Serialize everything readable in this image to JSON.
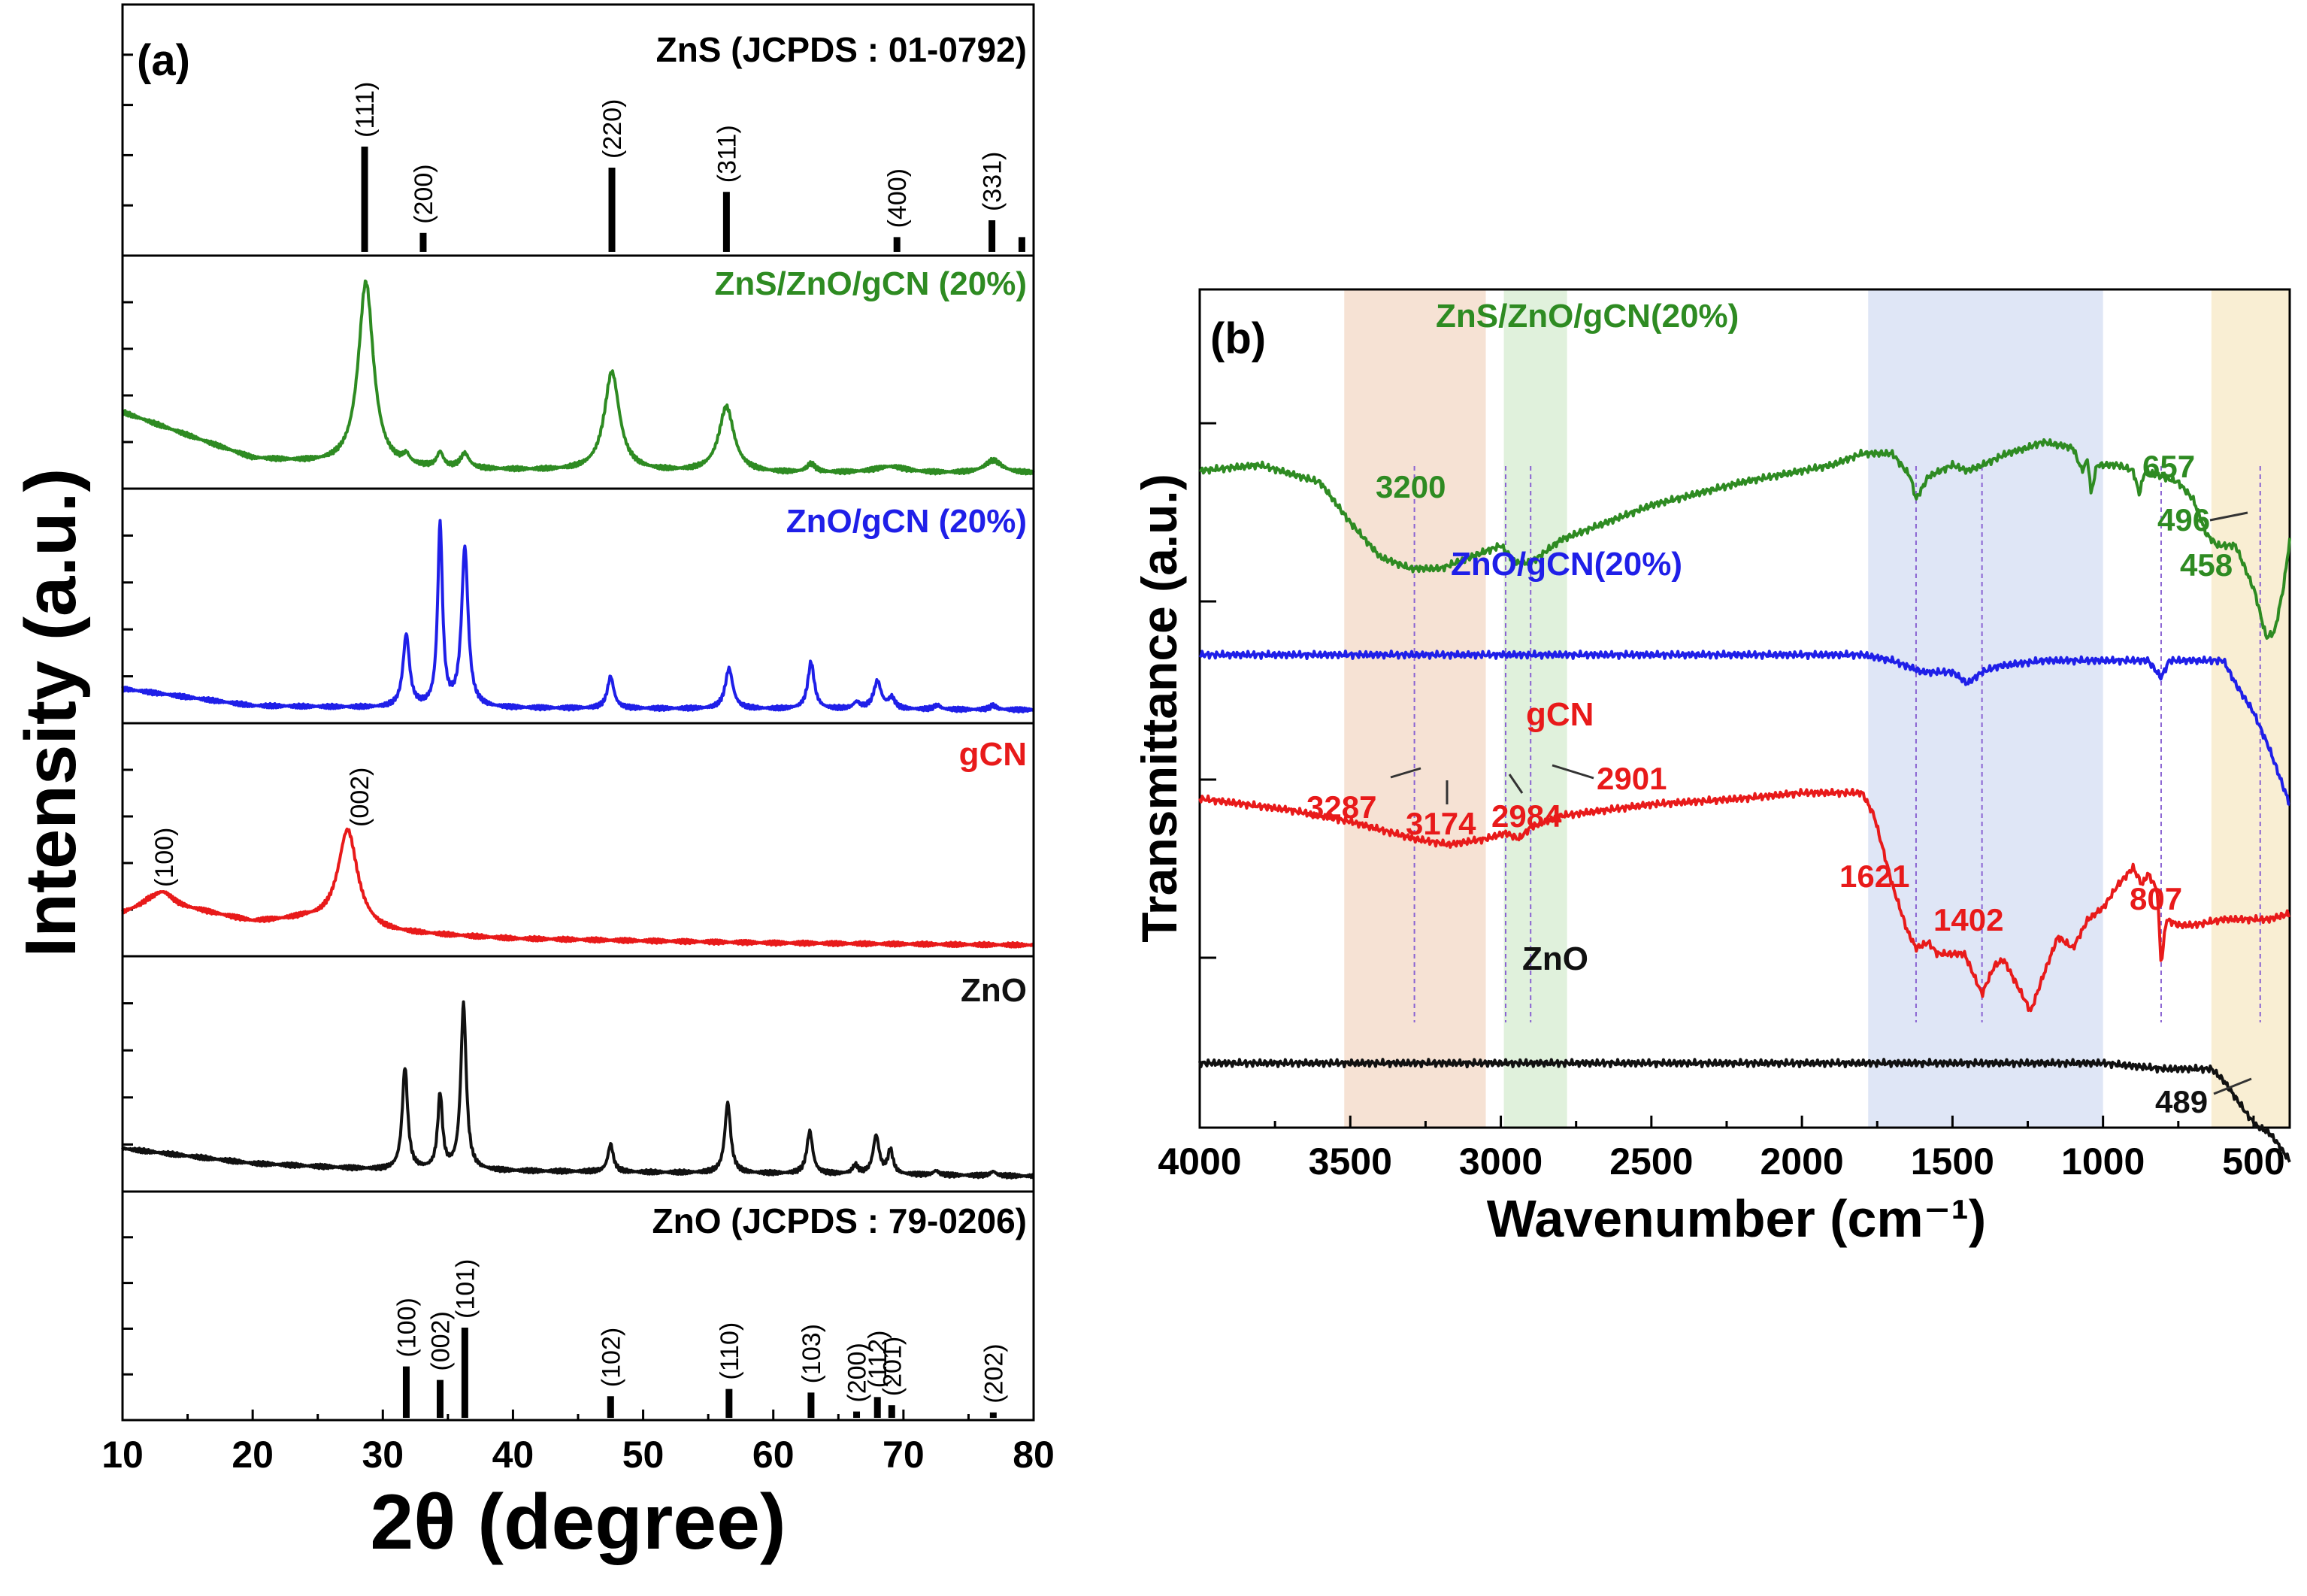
{
  "figure": {
    "panels": {
      "a": {
        "label": "(a)",
        "xlabel": "2θ (degree)",
        "ylabel": "Intensity (a.u.)",
        "xlim": [
          10,
          80
        ],
        "xticks": [
          10,
          20,
          30,
          40,
          50,
          60,
          70,
          80
        ],
        "ref_top_title": "ZnS (JCPDS : 01-0792)",
        "ref_bottom_title": "ZnO (JCPDS : 79-0206)",
        "trace_labels": {
          "zns_zno_gcn": "ZnS/ZnO/gCN (20%)",
          "zno_gcn": "ZnO/gCN (20%)",
          "gcn": "gCN",
          "zno": "ZnO"
        },
        "gcn_peak_labels": [
          "(100)",
          "(002)"
        ]
      },
      "b": {
        "label": "(b)",
        "xlabel": "Wavenumber (cm⁻¹)",
        "ylabel": "Transmittance (a.u.)",
        "xlim": [
          4000,
          380
        ],
        "xticks": [
          4000,
          3500,
          3000,
          2500,
          2000,
          1500,
          1000,
          500
        ],
        "trace_labels": {
          "zns_zno_gcn": "ZnS/ZnO/gCN(20%)",
          "zno_gcn": "ZnO/gCN(20%)",
          "gcn": "gCN",
          "zno": "ZnO"
        },
        "peak_labels": {
          "green": [
            "3200",
            "657",
            "496",
            "458"
          ],
          "red": [
            "3287",
            "3174",
            "2984",
            "2901",
            "1621",
            "1402",
            "807"
          ],
          "black": [
            "489"
          ]
        }
      }
    }
  },
  "chart_data": [
    {
      "type": "line",
      "panel": "a",
      "title": "",
      "xlabel": "2θ (degree)",
      "ylabel": "Intensity (a.u.)",
      "xlim": [
        10,
        80
      ],
      "grid": false,
      "reference_patterns": [
        {
          "name": "ZnS (JCPDS : 01-0792)",
          "peaks": [
            {
              "two_theta": 28.6,
              "intensity": 100,
              "hkl": "(111)"
            },
            {
              "two_theta": 33.1,
              "intensity": 18,
              "hkl": "(200)"
            },
            {
              "two_theta": 47.6,
              "intensity": 80,
              "hkl": "(220)"
            },
            {
              "two_theta": 56.4,
              "intensity": 57,
              "hkl": "(311)"
            },
            {
              "two_theta": 69.5,
              "intensity": 14,
              "hkl": "(400)"
            },
            {
              "two_theta": 76.8,
              "intensity": 30,
              "hkl": "(331)"
            },
            {
              "two_theta": 79.1,
              "intensity": 14,
              "hkl": ""
            }
          ]
        },
        {
          "name": "ZnO (JCPDS : 79-0206)",
          "peaks": [
            {
              "two_theta": 31.8,
              "intensity": 57,
              "hkl": "(100)"
            },
            {
              "two_theta": 34.4,
              "intensity": 42,
              "hkl": "(002)"
            },
            {
              "two_theta": 36.3,
              "intensity": 100,
              "hkl": "(101)"
            },
            {
              "two_theta": 47.5,
              "intensity": 24,
              "hkl": "(102)"
            },
            {
              "two_theta": 56.6,
              "intensity": 32,
              "hkl": "(110)"
            },
            {
              "two_theta": 62.9,
              "intensity": 28,
              "hkl": "(103)"
            },
            {
              "two_theta": 66.4,
              "intensity": 7,
              "hkl": "(200)"
            },
            {
              "two_theta": 68.0,
              "intensity": 23,
              "hkl": "(112)"
            },
            {
              "two_theta": 69.1,
              "intensity": 14,
              "hkl": "(201)"
            },
            {
              "two_theta": 76.9,
              "intensity": 6,
              "hkl": "(202)"
            }
          ]
        }
      ],
      "series": [
        {
          "name": "ZnS/ZnO/gCN (20%)",
          "color": "#2e8b22",
          "baseline": [
            [
              10,
              32
            ],
            [
              20,
              10
            ],
            [
              30,
              5
            ],
            [
              60,
              3
            ],
            [
              80,
              3
            ]
          ],
          "peaks": [
            [
              28.7,
              88,
              0.7
            ],
            [
              31.8,
              4,
              0.3
            ],
            [
              34.4,
              7,
              0.3
            ],
            [
              36.3,
              7,
              0.4
            ],
            [
              47.6,
              47,
              0.7
            ],
            [
              56.4,
              31,
              0.7
            ],
            [
              62.9,
              4,
              0.4
            ],
            [
              69,
              3,
              1.5
            ],
            [
              76.9,
              6,
              0.8
            ]
          ]
        },
        {
          "name": "ZnO/gCN (20%)",
          "color": "#1f1fe8",
          "baseline": [
            [
              10,
              12
            ],
            [
              20,
              4
            ],
            [
              30,
              3
            ],
            [
              80,
              2
            ]
          ],
          "peaks": [
            [
              31.8,
              34,
              0.3
            ],
            [
              34.4,
              86,
              0.22
            ],
            [
              36.3,
              75,
              0.3
            ],
            [
              47.5,
              15,
              0.3
            ],
            [
              56.6,
              19,
              0.35
            ],
            [
              62.9,
              22,
              0.3
            ],
            [
              66.4,
              3,
              0.3
            ],
            [
              68.0,
              13,
              0.35
            ],
            [
              69.1,
              5,
              0.3
            ],
            [
              72.6,
              2,
              0.3
            ],
            [
              76.9,
              2,
              0.3
            ]
          ]
        },
        {
          "name": "gCN",
          "color": "#e81a1a",
          "baseline": [
            [
              10,
              16
            ],
            [
              12,
              20
            ],
            [
              16,
              17
            ],
            [
              20,
              12
            ],
            [
              24,
              13
            ],
            [
              30,
              7
            ],
            [
              40,
              4
            ],
            [
              50,
              3
            ],
            [
              60,
              2
            ],
            [
              80,
              1
            ]
          ],
          "peaks": [
            [
              13.1,
              7,
              1.0
            ],
            [
              27.3,
              46,
              0.9
            ]
          ]
        },
        {
          "name": "ZnO",
          "color": "#111111",
          "baseline": [
            [
              10,
              16
            ],
            [
              20,
              9
            ],
            [
              30,
              6
            ],
            [
              80,
              3
            ]
          ],
          "peaks": [
            [
              31.7,
              48,
              0.25
            ],
            [
              34.4,
              35,
              0.22
            ],
            [
              36.2,
              78,
              0.25
            ],
            [
              47.5,
              13,
              0.25
            ],
            [
              56.5,
              33,
              0.27
            ],
            [
              62.8,
              20,
              0.27
            ],
            [
              66.3,
              4,
              0.25
            ],
            [
              67.9,
              18,
              0.28
            ],
            [
              69.0,
              11,
              0.25
            ],
            [
              72.5,
              2,
              0.25
            ],
            [
              76.9,
              2,
              0.25
            ]
          ]
        }
      ]
    },
    {
      "type": "line",
      "panel": "b",
      "title": "",
      "xlabel": "Wavenumber (cm⁻¹)",
      "ylabel": "Transmittance (a.u.)",
      "xlim": [
        4000,
        380
      ],
      "grid": false,
      "shaded_regions": [
        {
          "from": 3520,
          "to": 3050,
          "color": "#f3d8c6"
        },
        {
          "from": 2990,
          "to": 2780,
          "color": "#d5ecd0"
        },
        {
          "from": 1780,
          "to": 1000,
          "color": "#d4def3"
        },
        {
          "from": 640,
          "to": 380,
          "color": "#f7e8c4"
        }
      ],
      "guide_lines": [
        3287,
        2984,
        2901,
        1621,
        1402,
        807,
        478
      ],
      "series": [
        {
          "name": "ZnS/ZnO/gCN(20%)",
          "color": "#2e8b22",
          "points": [
            [
              4000,
              92
            ],
            [
              3800,
              93
            ],
            [
              3600,
              90
            ],
            [
              3500,
              83
            ],
            [
              3400,
              77
            ],
            [
              3300,
              75
            ],
            [
              3200,
              75
            ],
            [
              3100,
              77
            ],
            [
              3000,
              79
            ],
            [
              2950,
              76
            ],
            [
              2900,
              76
            ],
            [
              2800,
              80
            ],
            [
              2500,
              86
            ],
            [
              2200,
              90
            ],
            [
              1900,
              93
            ],
            [
              1800,
              95
            ],
            [
              1700,
              95
            ],
            [
              1640,
              91
            ],
            [
              1621,
              87
            ],
            [
              1580,
              91
            ],
            [
              1500,
              93
            ],
            [
              1450,
              92
            ],
            [
              1400,
              93
            ],
            [
              1320,
              95
            ],
            [
              1250,
              96
            ],
            [
              1200,
              97
            ],
            [
              1100,
              96
            ],
            [
              1070,
              92
            ],
            [
              1050,
              94
            ],
            [
              1040,
              88
            ],
            [
              1020,
              93
            ],
            [
              950,
              93
            ],
            [
              900,
              92
            ],
            [
              880,
              88
            ],
            [
              860,
              92
            ],
            [
              750,
              90
            ],
            [
              700,
              87
            ],
            [
              657,
              81
            ],
            [
              620,
              79
            ],
            [
              560,
              79
            ],
            [
              496,
              71
            ],
            [
              458,
              63
            ],
            [
              430,
              64
            ],
            [
              400,
              72
            ],
            [
              380,
              80
            ]
          ]
        },
        {
          "name": "ZnO/gCN(20%)",
          "color": "#1f1fe8",
          "points": [
            [
              4000,
              60
            ],
            [
              3000,
              60
            ],
            [
              2000,
              60
            ],
            [
              1800,
              60
            ],
            [
              1700,
              59
            ],
            [
              1600,
              57
            ],
            [
              1500,
              57
            ],
            [
              1450,
              55
            ],
            [
              1402,
              57
            ],
            [
              1350,
              58
            ],
            [
              1200,
              59
            ],
            [
              1000,
              59
            ],
            [
              850,
              59
            ],
            [
              807,
              56
            ],
            [
              780,
              59
            ],
            [
              600,
              59
            ],
            [
              560,
              55
            ],
            [
              500,
              50
            ],
            [
              450,
              44
            ],
            [
              380,
              34
            ]
          ]
        },
        {
          "name": "gCN",
          "color": "#e81a1a",
          "points": [
            [
              4000,
              35
            ],
            [
              3700,
              33
            ],
            [
              3500,
              31
            ],
            [
              3287,
              28
            ],
            [
              3174,
              27
            ],
            [
              3050,
              28
            ],
            [
              2984,
              29
            ],
            [
              2940,
              28
            ],
            [
              2901,
              30
            ],
            [
              2800,
              32
            ],
            [
              2500,
              34
            ],
            [
              2200,
              35
            ],
            [
              2000,
              36
            ],
            [
              1800,
              36
            ],
            [
              1760,
              32
            ],
            [
              1700,
              20
            ],
            [
              1650,
              12
            ],
            [
              1621,
              9
            ],
            [
              1580,
              10
            ],
            [
              1550,
              8
            ],
            [
              1460,
              8
            ],
            [
              1402,
              1
            ],
            [
              1360,
              6
            ],
            [
              1330,
              7
            ],
            [
              1300,
              4
            ],
            [
              1240,
              -2
            ],
            [
              1200,
              4
            ],
            [
              1150,
              11
            ],
            [
              1100,
              9
            ],
            [
              1050,
              14
            ],
            [
              1000,
              16
            ],
            [
              950,
              20
            ],
            [
              900,
              23
            ],
            [
              870,
              20
            ],
            [
              850,
              22
            ],
            [
              820,
              19
            ],
            [
              807,
              6
            ],
            [
              790,
              14
            ],
            [
              750,
              13
            ],
            [
              700,
              13
            ],
            [
              600,
              14
            ],
            [
              500,
              14
            ],
            [
              450,
              14
            ],
            [
              380,
              15
            ]
          ]
        },
        {
          "name": "ZnO",
          "color": "#111111",
          "points": [
            [
              4000,
              -11
            ],
            [
              3000,
              -11
            ],
            [
              2000,
              -11
            ],
            [
              1500,
              -11
            ],
            [
              1000,
              -11
            ],
            [
              800,
              -12
            ],
            [
              640,
              -12
            ],
            [
              600,
              -14
            ],
            [
              560,
              -17
            ],
            [
              520,
              -20
            ],
            [
              489,
              -22
            ],
            [
              450,
              -23
            ],
            [
              420,
              -25
            ],
            [
              380,
              -28
            ]
          ]
        }
      ]
    }
  ]
}
